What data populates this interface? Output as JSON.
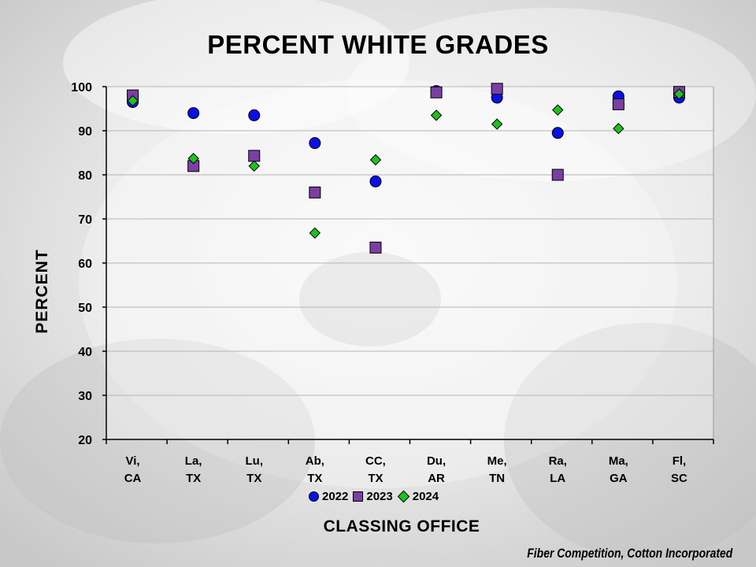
{
  "chart_data": {
    "type": "scatter",
    "title": "PERCENT WHITE GRADES",
    "xlabel": "CLASSING OFFICE",
    "ylabel": "PERCENT",
    "ylim": [
      20,
      100
    ],
    "yticks": [
      "20",
      "30",
      "40",
      "50",
      "60",
      "70",
      "80",
      "90",
      "100"
    ],
    "grid": true,
    "legend_position": "bottom",
    "categories": [
      {
        "line1": "Vi,",
        "line2": "CA"
      },
      {
        "line1": "La,",
        "line2": "TX"
      },
      {
        "line1": "Lu,",
        "line2": "TX"
      },
      {
        "line1": "Ab,",
        "line2": "TX"
      },
      {
        "line1": "CC,",
        "line2": "TX"
      },
      {
        "line1": "Du,",
        "line2": "AR"
      },
      {
        "line1": "Me,",
        "line2": "TN"
      },
      {
        "line1": "Ra,",
        "line2": "LA"
      },
      {
        "line1": "Ma,",
        "line2": "GA"
      },
      {
        "line1": "Fl,",
        "line2": "SC"
      }
    ],
    "series": [
      {
        "name": "2022",
        "marker": "circle",
        "color": "#0a10e6",
        "values": [
          96.5,
          94.0,
          93.5,
          87.2,
          78.5,
          99.0,
          97.5,
          89.5,
          97.8,
          97.5
        ]
      },
      {
        "name": "2023",
        "marker": "square",
        "color": "#7b3fa3",
        "values": [
          98.0,
          82.0,
          84.3,
          76.0,
          63.5,
          98.7,
          99.5,
          80.0,
          96.0,
          98.8
        ]
      },
      {
        "name": "2024",
        "marker": "diamond",
        "color": "#1fc11f",
        "values": [
          96.8,
          83.7,
          82.0,
          66.8,
          83.4,
          93.5,
          91.5,
          94.7,
          90.5,
          98.3
        ]
      }
    ]
  },
  "source": "Fiber Competition, Cotton Incorporated"
}
